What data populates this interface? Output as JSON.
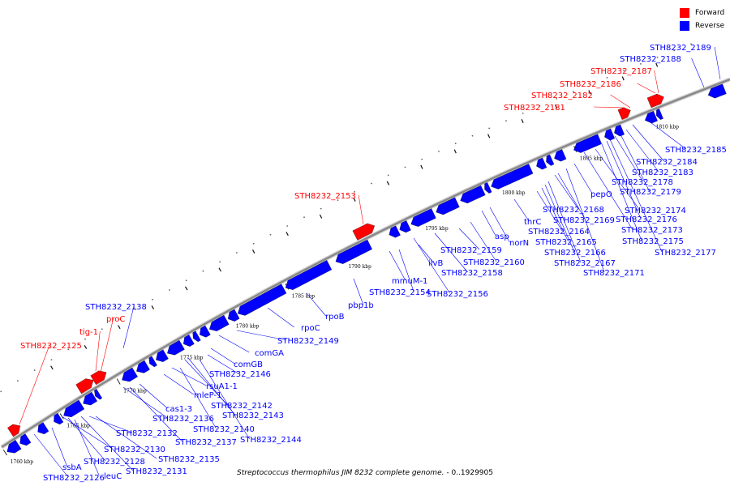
{
  "caption": {
    "organism": "Streptococcus thermophilus JIM 8232 complete genome.",
    "range": " - 0..1929905"
  },
  "legend": [
    {
      "label": "Forward",
      "color": "#ff0000"
    },
    {
      "label": "Reverse",
      "color": "#0000ff"
    }
  ],
  "colors": {
    "forward": "#ff0000",
    "reverse": "#0000ff",
    "axis": "#888888",
    "leader": "#000000"
  },
  "scale_labels": [
    "1760 kbp",
    "1765 kbp",
    "1770 kbp",
    "1775 kbp",
    "1780 kbp",
    "1785 kbp",
    "1790 kbp",
    "1795 kbp",
    "1800 kbp",
    "1805 kbp",
    "1810 kbp"
  ],
  "gene_labels": {
    "forward": [
      "STH8232_2125",
      "tig-1",
      "proC",
      "STH8232_2153",
      "STH8232_2181",
      "STH8232_2182",
      "STH8232_2186",
      "STH8232_2187"
    ],
    "reverse": [
      "STH8232_2126",
      "ssbA",
      "leuC",
      "STH8232_2128",
      "STH8232_2130",
      "STH8232_2131",
      "STH8232_2132",
      "STH8232_2135",
      "STH8232_2136",
      "STH8232_2137",
      "cas1-3",
      "STH8232_2138",
      "mleP-1",
      "rsuA1-1",
      "STH8232_2140",
      "STH8232_2142",
      "STH8232_2143",
      "STH8232_2144",
      "STH8232_2146",
      "comGB",
      "comGA",
      "STH8232_2149",
      "rpoC",
      "rpoB",
      "pbp1b",
      "mmuM-1",
      "STH8232_2154",
      "ilvB",
      "STH8232_2156",
      "STH8232_2158",
      "STH8232_2159",
      "STH8232_2160",
      "asp",
      "norN",
      "thrC",
      "STH8232_2164",
      "STH8232_2165",
      "STH8232_2166",
      "STH8232_2167",
      "STH8232_2168",
      "STH8232_2169",
      "STH8232_2171",
      "pepO",
      "STH8232_2173",
      "STH8232_2174",
      "STH8232_2175",
      "STH8232_2176",
      "STH8232_2177",
      "STH8232_2178",
      "STH8232_2179",
      "STH8232_2183",
      "STH8232_2184",
      "STH8232_2185",
      "STH8232_2188",
      "STH8232_2189"
    ]
  }
}
